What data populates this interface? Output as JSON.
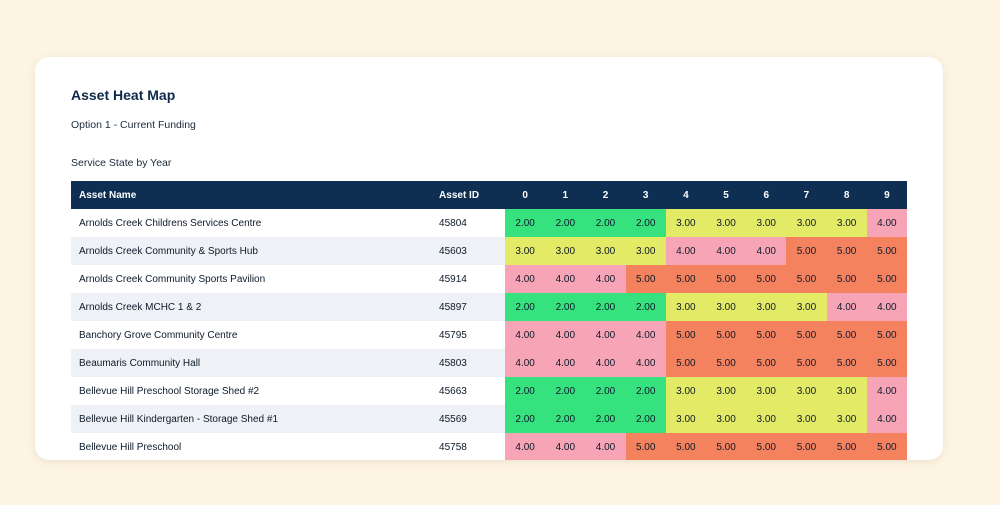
{
  "title": "Asset Heat Map",
  "subtitle": "Option 1 - Current Funding",
  "table_caption": "Service State by Year",
  "header": {
    "name": "Asset Name",
    "id": "Asset ID",
    "years": [
      "0",
      "1",
      "2",
      "3",
      "4",
      "5",
      "6",
      "7",
      "8",
      "9"
    ]
  },
  "colors": {
    "2.00": "#36e27d",
    "3.00": "#e2ea66",
    "4.00": "#f7a5b6",
    "5.00": "#f4825f"
  },
  "chart_data": {
    "type": "heatmap",
    "title": "Asset Heat Map",
    "subtitle": "Option 1 - Current Funding",
    "xlabel": "Service State by Year",
    "x": [
      0,
      1,
      2,
      3,
      4,
      5,
      6,
      7,
      8,
      9
    ],
    "rows": [
      {
        "name": "Arnolds Creek Childrens Services Centre",
        "id": "45804",
        "values": [
          "2.00",
          "2.00",
          "2.00",
          "2.00",
          "3.00",
          "3.00",
          "3.00",
          "3.00",
          "3.00",
          "4.00"
        ]
      },
      {
        "name": "Arnolds Creek Community & Sports Hub",
        "id": "45603",
        "values": [
          "3.00",
          "3.00",
          "3.00",
          "3.00",
          "4.00",
          "4.00",
          "4.00",
          "5.00",
          "5.00",
          "5.00"
        ]
      },
      {
        "name": "Arnolds Creek Community Sports Pavilion",
        "id": "45914",
        "values": [
          "4.00",
          "4.00",
          "4.00",
          "5.00",
          "5.00",
          "5.00",
          "5.00",
          "5.00",
          "5.00",
          "5.00"
        ]
      },
      {
        "name": "Arnolds Creek MCHC 1 & 2",
        "id": "45897",
        "values": [
          "2.00",
          "2.00",
          "2.00",
          "2.00",
          "3.00",
          "3.00",
          "3.00",
          "3.00",
          "4.00",
          "4.00"
        ]
      },
      {
        "name": "Banchory Grove Community Centre",
        "id": "45795",
        "values": [
          "4.00",
          "4.00",
          "4.00",
          "4.00",
          "5.00",
          "5.00",
          "5.00",
          "5.00",
          "5.00",
          "5.00"
        ]
      },
      {
        "name": "Beaumaris Community Hall",
        "id": "45803",
        "values": [
          "4.00",
          "4.00",
          "4.00",
          "4.00",
          "5.00",
          "5.00",
          "5.00",
          "5.00",
          "5.00",
          "5.00"
        ]
      },
      {
        "name": "Bellevue Hill Preschool Storage Shed #2",
        "id": "45663",
        "values": [
          "2.00",
          "2.00",
          "2.00",
          "2.00",
          "3.00",
          "3.00",
          "3.00",
          "3.00",
          "3.00",
          "4.00"
        ]
      },
      {
        "name": "Bellevue Hill Kindergarten - Storage Shed #1",
        "id": "45569",
        "values": [
          "2.00",
          "2.00",
          "2.00",
          "2.00",
          "3.00",
          "3.00",
          "3.00",
          "3.00",
          "3.00",
          "4.00"
        ]
      },
      {
        "name": "Bellevue Hill Preschool",
        "id": "45758",
        "values": [
          "4.00",
          "4.00",
          "4.00",
          "5.00",
          "5.00",
          "5.00",
          "5.00",
          "5.00",
          "5.00",
          "5.00"
        ]
      }
    ]
  }
}
